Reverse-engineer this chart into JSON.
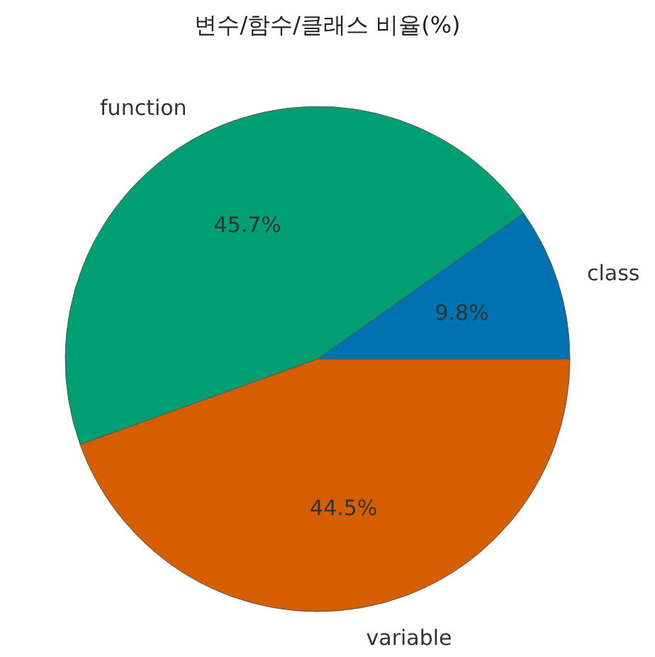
{
  "chart_data": {
    "type": "pie",
    "title": "변수/함수/클래스 비율(%)",
    "categories": [
      "class",
      "function",
      "variable"
    ],
    "values": [
      9.8,
      45.7,
      44.5
    ],
    "colors": [
      "#0072b2",
      "#009e73",
      "#d55e00"
    ],
    "value_labels": [
      "9.8%",
      "45.7%",
      "44.5%"
    ]
  }
}
